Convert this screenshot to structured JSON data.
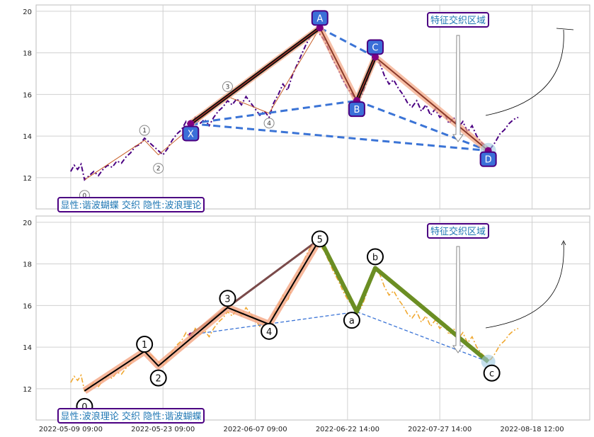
{
  "chart_data": [
    {
      "type": "line",
      "title": "",
      "xlabel": "",
      "ylabel": "",
      "ylim": [
        10.5,
        20.3
      ],
      "yticks": [
        12,
        14,
        16,
        18,
        20
      ],
      "grid": true,
      "colors": {
        "price": "#4b0082",
        "xabcd": "#000000",
        "xabcd_halo": "#f4a582",
        "dash": "#3b74d6",
        "point_fill": "#3b6fd8",
        "point_edge": "#4b0082",
        "label_box": "#1f77b4"
      },
      "price": [
        [
          0.0,
          12.3
        ],
        [
          0.15,
          12.6
        ],
        [
          0.3,
          12.4
        ],
        [
          0.45,
          12.65
        ],
        [
          0.6,
          11.9
        ],
        [
          0.8,
          12.1
        ],
        [
          1.0,
          12.3
        ],
        [
          1.2,
          12.1
        ],
        [
          1.4,
          12.4
        ],
        [
          1.6,
          12.6
        ],
        [
          1.8,
          12.5
        ],
        [
          2.0,
          12.8
        ],
        [
          2.2,
          12.7
        ],
        [
          2.4,
          13.0
        ],
        [
          2.6,
          13.2
        ],
        [
          2.8,
          13.5
        ],
        [
          3.0,
          13.6
        ],
        [
          3.2,
          13.9
        ],
        [
          3.4,
          13.7
        ],
        [
          3.6,
          13.5
        ],
        [
          3.8,
          13.3
        ],
        [
          4.0,
          13.1
        ],
        [
          4.2,
          13.4
        ],
        [
          4.4,
          13.8
        ],
        [
          4.6,
          14.1
        ],
        [
          4.8,
          14.3
        ],
        [
          5.0,
          14.7
        ],
        [
          5.2,
          14.4
        ],
        [
          5.4,
          14.9
        ],
        [
          5.6,
          14.6
        ],
        [
          5.8,
          14.8
        ],
        [
          6.0,
          14.5
        ],
        [
          6.2,
          14.9
        ],
        [
          6.4,
          15.2
        ],
        [
          6.6,
          15.4
        ],
        [
          6.8,
          15.7
        ],
        [
          7.0,
          15.5
        ],
        [
          7.2,
          15.8
        ],
        [
          7.4,
          15.5
        ],
        [
          7.6,
          15.9
        ],
        [
          7.8,
          15.6
        ],
        [
          8.0,
          15.3
        ],
        [
          8.2,
          15.0
        ],
        [
          8.4,
          15.2
        ],
        [
          8.6,
          14.9
        ],
        [
          8.8,
          15.6
        ],
        [
          9.0,
          16.0
        ],
        [
          9.2,
          16.5
        ],
        [
          9.4,
          16.2
        ],
        [
          9.6,
          16.9
        ],
        [
          9.8,
          17.4
        ],
        [
          10.0,
          17.9
        ],
        [
          10.2,
          18.4
        ],
        [
          10.4,
          18.8
        ],
        [
          10.6,
          19.1
        ],
        [
          10.8,
          18.9
        ],
        [
          11.0,
          18.6
        ],
        [
          11.2,
          18.1
        ],
        [
          11.4,
          17.6
        ],
        [
          11.6,
          17.2
        ],
        [
          11.8,
          16.7
        ],
        [
          12.0,
          16.3
        ],
        [
          12.2,
          16.0
        ],
        [
          12.4,
          15.7
        ],
        [
          12.6,
          15.9
        ],
        [
          12.8,
          16.5
        ],
        [
          13.0,
          17.2
        ],
        [
          13.2,
          17.8
        ],
        [
          13.4,
          17.5
        ],
        [
          13.6,
          16.9
        ],
        [
          13.8,
          16.5
        ],
        [
          14.0,
          16.7
        ],
        [
          14.2,
          16.3
        ],
        [
          14.4,
          16.0
        ],
        [
          14.6,
          15.6
        ],
        [
          14.8,
          15.4
        ],
        [
          15.0,
          15.7
        ],
        [
          15.2,
          15.2
        ],
        [
          15.4,
          15.5
        ],
        [
          15.6,
          15.0
        ],
        [
          15.8,
          15.3
        ],
        [
          16.0,
          14.9
        ],
        [
          16.2,
          15.1
        ],
        [
          16.4,
          14.6
        ],
        [
          16.6,
          14.9
        ],
        [
          16.8,
          14.4
        ],
        [
          17.0,
          14.7
        ],
        [
          17.2,
          14.2
        ],
        [
          17.4,
          14.5
        ],
        [
          17.6,
          14.0
        ],
        [
          17.8,
          13.7
        ],
        [
          18.0,
          13.5
        ],
        [
          18.2,
          13.4
        ],
        [
          18.4,
          13.7
        ],
        [
          18.6,
          14.1
        ],
        [
          18.8,
          14.3
        ],
        [
          19.0,
          14.6
        ],
        [
          19.2,
          14.8
        ],
        [
          19.4,
          14.9
        ]
      ],
      "xabcd_points": [
        {
          "label": "X",
          "x": 5.2,
          "y": 14.6
        },
        {
          "label": "A",
          "x": 10.8,
          "y": 19.2
        },
        {
          "label": "B",
          "x": 12.4,
          "y": 15.7
        },
        {
          "label": "C",
          "x": 13.2,
          "y": 17.8
        },
        {
          "label": "D",
          "x": 18.1,
          "y": 13.3
        }
      ],
      "wave_points": [
        {
          "label": "0",
          "x": 0.6,
          "y": 11.9
        },
        {
          "label": "1",
          "x": 3.2,
          "y": 13.8
        },
        {
          "label": "2",
          "x": 3.8,
          "y": 13.1
        },
        {
          "label": "3",
          "x": 6.8,
          "y": 15.9
        },
        {
          "label": "4",
          "x": 8.6,
          "y": 15.1
        },
        {
          "label": "5",
          "x": 10.8,
          "y": 19.2
        }
      ],
      "annotation": "特征交织区域",
      "label_box": "显性:谐波蝴蝶 交织 隐性:波浪理论"
    },
    {
      "type": "line",
      "title": "",
      "xlabel": "",
      "ylabel": "",
      "ylim": [
        10.5,
        20.3
      ],
      "yticks": [
        12,
        14,
        16,
        18,
        20
      ],
      "grid": true,
      "colors": {
        "price": "#f0a830",
        "impulse": "#000000",
        "impulse_halo": "#f4a582",
        "corrective": "#6b8e23",
        "diagonal": "#7a4a4a",
        "dash": "#3b74d6",
        "label_box": "#1f77b4"
      },
      "price_ref": 0,
      "impulse_points": [
        {
          "label": "0",
          "x": 0.6,
          "y": 11.9
        },
        {
          "label": "1",
          "x": 3.2,
          "y": 13.8
        },
        {
          "label": "2",
          "x": 3.8,
          "y": 13.1
        },
        {
          "label": "3",
          "x": 6.8,
          "y": 15.9
        },
        {
          "label": "4",
          "x": 8.6,
          "y": 15.1
        },
        {
          "label": "5",
          "x": 10.8,
          "y": 19.2
        }
      ],
      "corrective_points": [
        {
          "label": "a",
          "x": 12.4,
          "y": 15.7
        },
        {
          "label": "b",
          "x": 13.2,
          "y": 17.8
        },
        {
          "label": "c",
          "x": 18.1,
          "y": 13.3
        }
      ],
      "annotation": "特征交织区域",
      "label_box": "显性:波浪理论 交织 隐性:谐波蝴蝶"
    }
  ],
  "x_axis": {
    "xlim": [
      -1.5,
      22.5
    ],
    "ticks": [
      {
        "x": 0,
        "label": "2022-05-09 09:00"
      },
      {
        "x": 4,
        "label": "2022-05-23 09:00"
      },
      {
        "x": 8,
        "label": "2022-06-07 09:00"
      },
      {
        "x": 12,
        "label": "2022-06-22 14:00"
      },
      {
        "x": 16,
        "label": "2022-07-27 14:00"
      },
      {
        "x": 20,
        "label": "2022-08-18 12:00"
      }
    ]
  }
}
